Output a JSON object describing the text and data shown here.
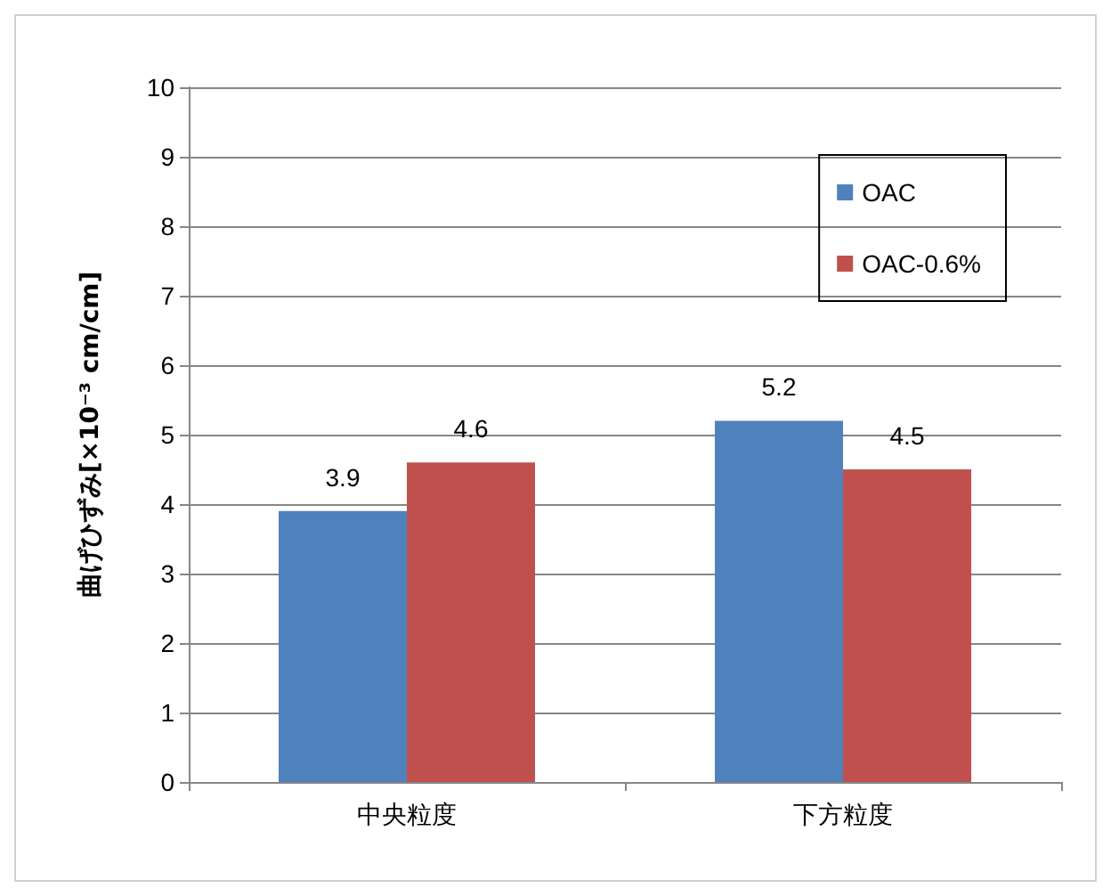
{
  "chart_data": {
    "type": "bar",
    "ylabel": "曲げひずみ[×10⁻³ cm/cm]",
    "categories": [
      "中央粒度",
      "下方粒度"
    ],
    "series": [
      {
        "name": "OAC",
        "color": "#4f81bd",
        "values": [
          3.9,
          5.2
        ]
      },
      {
        "name": "OAC-0.6%",
        "color": "#c0504d",
        "values": [
          4.6,
          4.5
        ]
      }
    ],
    "ylim": [
      0,
      10
    ],
    "yticks": [
      0,
      1,
      2,
      3,
      4,
      5,
      6,
      7,
      8,
      9,
      10
    ],
    "grid": "y",
    "legend": "top right",
    "data_labels": true
  }
}
